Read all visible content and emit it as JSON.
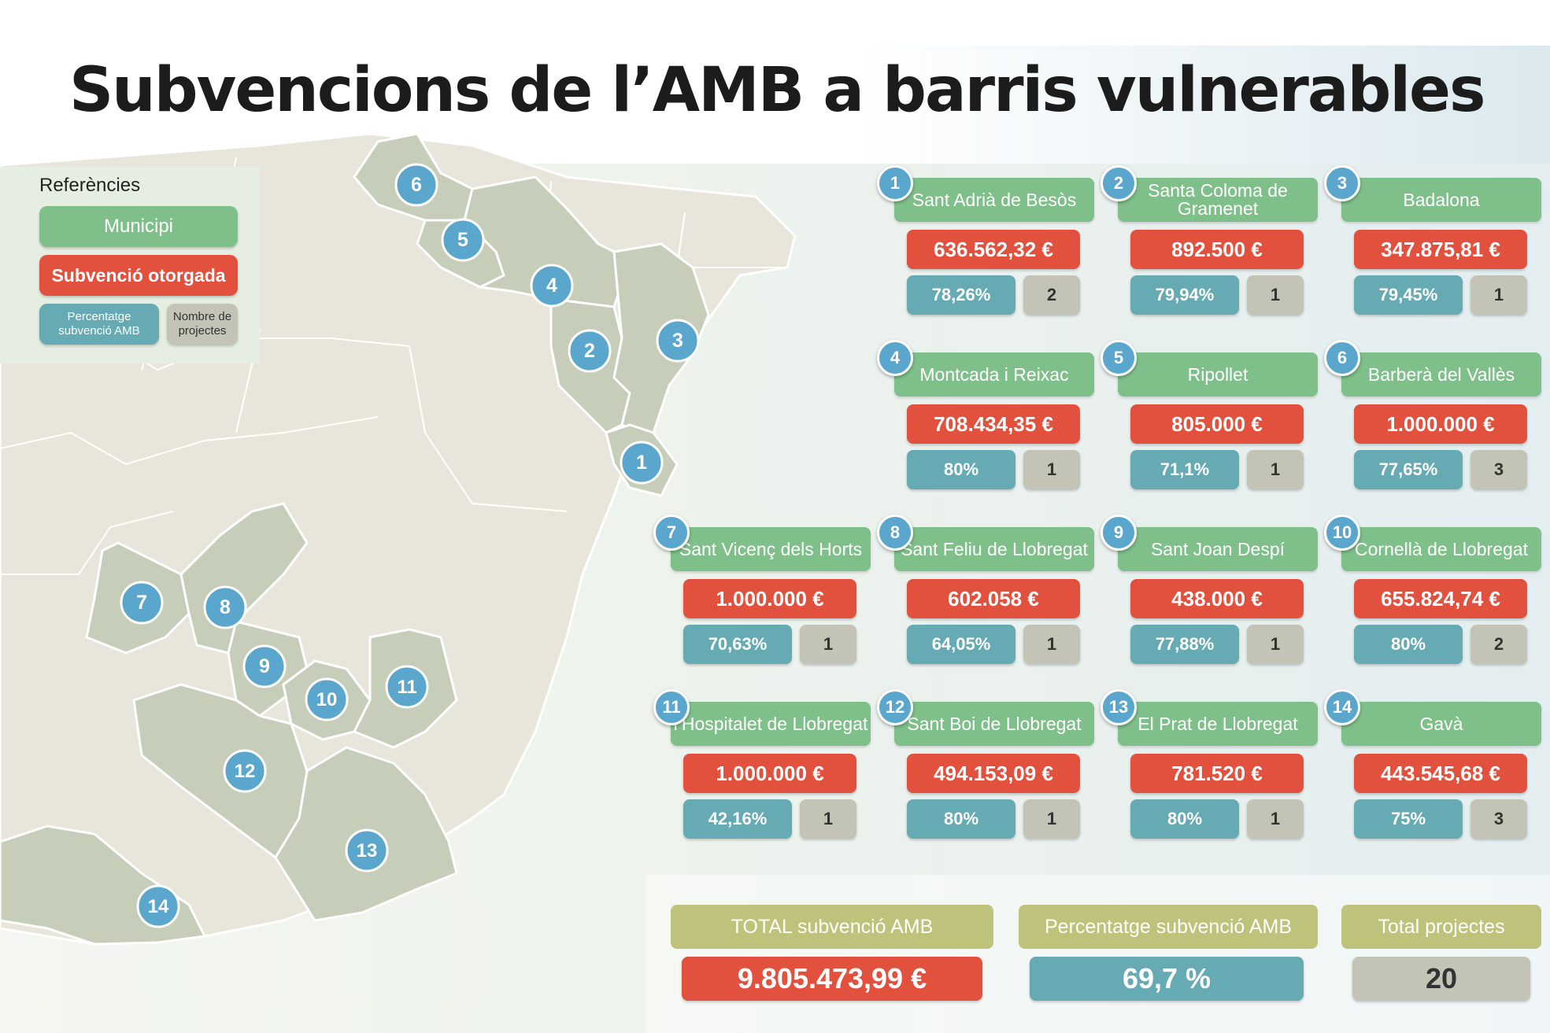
{
  "title": "Subvencions de l’AMB a barris vulnerables",
  "legend": {
    "title": "Referències",
    "municipi": "Municipi",
    "subvencio": "Subvenció otorgada",
    "percentatge_l1": "Percentatge",
    "percentatge_l2": "subvenció AMB",
    "nombre_l1": "Nombre de",
    "nombre_l2": "projectes"
  },
  "map_markers": [
    "1",
    "2",
    "3",
    "4",
    "5",
    "6",
    "7",
    "8",
    "9",
    "10",
    "11",
    "12",
    "13",
    "14"
  ],
  "municipalities": [
    {
      "num": "1",
      "name": "Sant Adrià de Besòs",
      "amount": "636.562,32 €",
      "pct": "78,26%",
      "projects": "2"
    },
    {
      "num": "2",
      "name": "Santa Coloma de Gramenet",
      "amount": "892.500 €",
      "pct": "79,94%",
      "projects": "1"
    },
    {
      "num": "3",
      "name": "Badalona",
      "amount": "347.875,81 €",
      "pct": "79,45%",
      "projects": "1"
    },
    {
      "num": "4",
      "name": "Montcada i Reixac",
      "amount": "708.434,35 €",
      "pct": "80%",
      "projects": "1"
    },
    {
      "num": "5",
      "name": "Ripollet",
      "amount": "805.000 €",
      "pct": "71,1%",
      "projects": "1"
    },
    {
      "num": "6",
      "name": "Barberà del Vallès",
      "amount": "1.000.000 €",
      "pct": "77,65%",
      "projects": "3"
    },
    {
      "num": "7",
      "name": "Sant Vicenç dels Horts",
      "amount": "1.000.000 €",
      "pct": "70,63%",
      "projects": "1"
    },
    {
      "num": "8",
      "name": "Sant Feliu de Llobregat",
      "amount": "602.058 €",
      "pct": "64,05%",
      "projects": "1"
    },
    {
      "num": "9",
      "name": "Sant Joan Despí",
      "amount": "438.000 €",
      "pct": "77,88%",
      "projects": "1"
    },
    {
      "num": "10",
      "name": "Cornellà de Llobregat",
      "amount": "655.824,74 €",
      "pct": "80%",
      "projects": "2"
    },
    {
      "num": "11",
      "name": "l’Hospitalet de Llobregat",
      "amount": "1.000.000 €",
      "pct": "42,16%",
      "projects": "1"
    },
    {
      "num": "12",
      "name": "Sant Boi de Llobregat",
      "amount": "494.153,09 €",
      "pct": "80%",
      "projects": "1"
    },
    {
      "num": "13",
      "name": "El Prat de Llobregat",
      "amount": "781.520 €",
      "pct": "80%",
      "projects": "1"
    },
    {
      "num": "14",
      "name": "Gavà",
      "amount": "443.545,68 €",
      "pct": "75%",
      "projects": "3"
    }
  ],
  "summary": {
    "total_label": "TOTAL subvenció AMB",
    "total_value": "9.805.473,99 €",
    "pct_label": "Percentatge subvenció AMB",
    "pct_value": "69,7 %",
    "projects_label": "Total projectes",
    "projects_value": "20"
  },
  "colors": {
    "municipi": "#7fc08a",
    "subvencio": "#e2513e",
    "percentatge": "#66aab3",
    "projectes": "#c3c4b5",
    "marker": "#5aa6cd",
    "summary_header": "#bfc27a"
  }
}
